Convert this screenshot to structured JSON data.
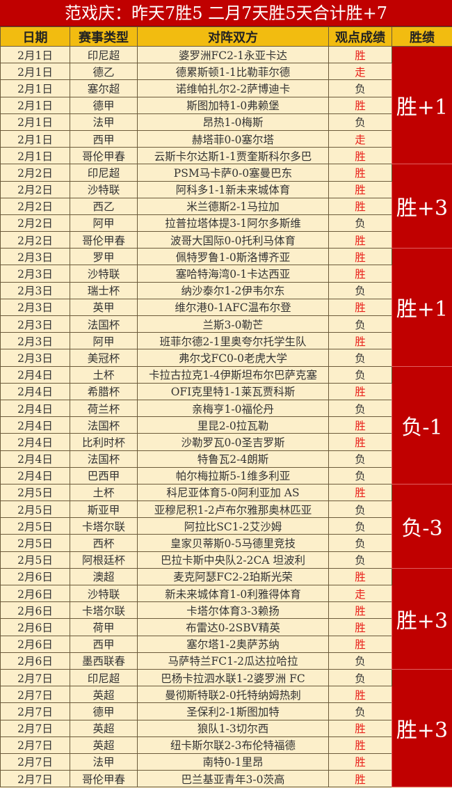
{
  "title": "范戏庆：昨天7胜5 二月7天胜5天合计胜+7",
  "headers": [
    "日期",
    "赛事类型",
    "对阵双方",
    "观点成绩",
    "胜绩"
  ],
  "colors": {
    "title_bg": "#c00000",
    "header_bg": "#f2bc10",
    "row_bg": "#fcefca",
    "win_text": "#e8201a",
    "group_bg": "#c00000"
  },
  "groups": [
    {
      "summary": "胜+1",
      "rows": [
        [
          "2月1日",
          "印尼超",
          "婆罗洲FC2-1永亚卡达",
          "胜"
        ],
        [
          "2月1日",
          "德乙",
          "德累斯顿1-1比勒菲尔德",
          "走"
        ],
        [
          "2月1日",
          "塞尔超",
          "诺维帕扎尔2-2萨博迪卡",
          "负"
        ],
        [
          "2月1日",
          "德甲",
          "斯图加特1-0弗赖堡",
          "胜"
        ],
        [
          "2月1日",
          "法甲",
          "昂热1-0梅斯",
          "负"
        ],
        [
          "2月1日",
          "西甲",
          "赫塔菲0-0塞尔塔",
          "走"
        ],
        [
          "2月1日",
          "哥伦甲春",
          "云斯卡尔达斯1-1贾奎斯科尔多巴",
          "胜"
        ]
      ]
    },
    {
      "summary": "胜+3",
      "rows": [
        [
          "2月2日",
          "印尼超",
          "PSM马卡萨0-0塞曼巴东",
          "胜"
        ],
        [
          "2月2日",
          "沙特联",
          "阿科多1-1新未来城体育",
          "胜"
        ],
        [
          "2月2日",
          "西乙",
          "米兰德斯2-1马拉加",
          "胜"
        ],
        [
          "2月2日",
          "阿甲",
          "拉普拉塔体提3-1阿尔多斯维",
          "负"
        ],
        [
          "2月2日",
          "哥伦甲春",
          "波哥大国际0-0托利马体育",
          "胜"
        ]
      ]
    },
    {
      "summary": "胜+1",
      "rows": [
        [
          "2月3日",
          "罗甲",
          "佩特罗鲁1-0斯洛博齐亚",
          "胜"
        ],
        [
          "2月3日",
          "沙特联",
          "塞哈特海湾0-1卡达西亚",
          "胜"
        ],
        [
          "2月3日",
          "瑞士杯",
          "纳沙泰尔1-2伊韦尔东",
          "负"
        ],
        [
          "2月3日",
          "英甲",
          "维尔港0-1AFC温布尔登",
          "胜"
        ],
        [
          "2月3日",
          "法国杯",
          "兰斯3-0勒芒",
          "负"
        ],
        [
          "2月3日",
          "阿甲",
          "班菲尔德2-1里奥夸尔托学生队",
          "胜"
        ],
        [
          "2月3日",
          "美冠杯",
          "弗尔戈FC0-0老虎大学",
          "负"
        ]
      ]
    },
    {
      "summary": "负-1",
      "rows": [
        [
          "2月4日",
          "土杯",
          "卡拉古拉克1-4伊斯坦布尔巴萨克塞",
          "负"
        ],
        [
          "2月4日",
          "希腊杯",
          "OFI克里特1-1莱瓦贾科斯",
          "胜"
        ],
        [
          "2月4日",
          "荷兰杯",
          "亲梅亨1-0福伦丹",
          "负"
        ],
        [
          "2月4日",
          "法国杯",
          "里昆2-0拉瓦勒",
          "胜"
        ],
        [
          "2月4日",
          "比利时杯",
          "沙勒罗瓦0-0圣吉罗斯",
          "胜"
        ],
        [
          "2月4日",
          "法国杯",
          "特鲁瓦2-4朗斯",
          "负"
        ],
        [
          "2月4日",
          "巴西甲",
          "帕尔梅拉斯5-1维多利亚",
          "负"
        ]
      ]
    },
    {
      "summary": "负-3",
      "rows": [
        [
          "2月5日",
          "土杯",
          "科尼亚体育5-0阿利亚加 AS",
          "胜"
        ],
        [
          "2月5日",
          "斯亚甲",
          "亚穆尼积1-2卢布尔雅那奥林匹亚",
          "负"
        ],
        [
          "2月5日",
          "卡塔尔联",
          "阿拉比SC1-2艾沙姆",
          "负"
        ],
        [
          "2月5日",
          "西杯",
          "皇家贝蒂斯0-5马德里竞技",
          "负"
        ],
        [
          "2月5日",
          "阿根廷杯",
          "巴拉卡斯中央队2-2CA 坦波利",
          "负"
        ]
      ]
    },
    {
      "summary": "胜+3",
      "rows": [
        [
          "2月6日",
          "澳超",
          "麦克阿瑟FC2-2珀斯光荣",
          "胜"
        ],
        [
          "2月6日",
          "沙特联",
          "新未来城体育1-0利雅得体育",
          "走"
        ],
        [
          "2月6日",
          "卡塔尔联",
          "卡塔尔体育3-3赖扬",
          "胜"
        ],
        [
          "2月6日",
          "荷甲",
          "布雷达0-2SBV精英",
          "胜"
        ],
        [
          "2月6日",
          "西甲",
          "塞尔塔1-2奥萨苏纳",
          "胜"
        ],
        [
          "2月6日",
          "墨西联春",
          "马萨特兰FC1-2瓜达拉哈拉",
          "负"
        ]
      ]
    },
    {
      "summary": "胜+3",
      "rows": [
        [
          "2月7日",
          "印尼超",
          "巴杨卡拉泗水联1-2婆罗洲 FC",
          "负"
        ],
        [
          "2月7日",
          "英超",
          "曼彻斯特联2-0托特纳姆热刺",
          "胜"
        ],
        [
          "2月7日",
          "德甲",
          "圣保利2-1斯图加特",
          "负"
        ],
        [
          "2月7日",
          "英超",
          "狼队1-3切尔西",
          "胜"
        ],
        [
          "2月7日",
          "英超",
          "纽卡斯尔联2-3布伦特福德",
          "胜"
        ],
        [
          "2月7日",
          "法甲",
          "南特0-1里昂",
          "胜"
        ],
        [
          "2月7日",
          "哥伦甲春",
          "巴兰基亚青年3-0茨高",
          "胜"
        ]
      ]
    }
  ]
}
